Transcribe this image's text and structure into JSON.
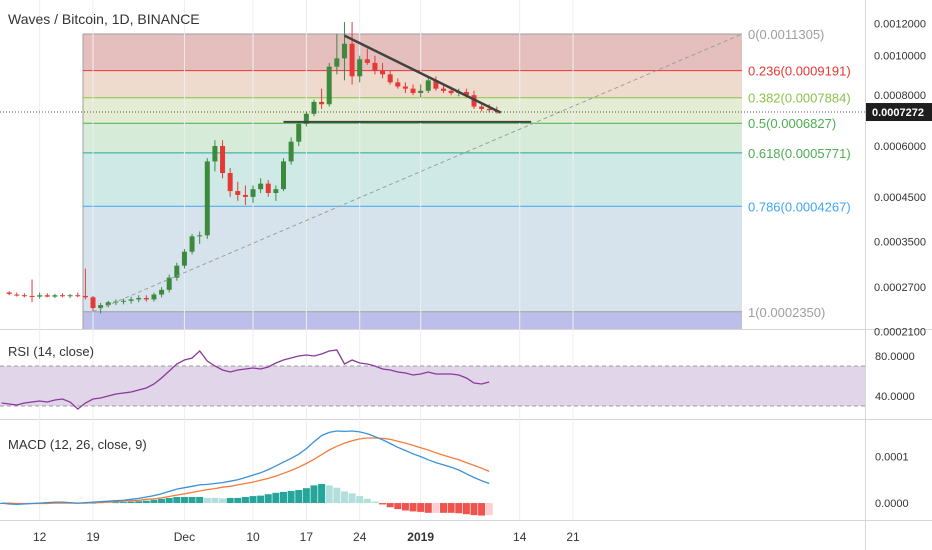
{
  "header": {
    "title": "Waves / Bitcoin, 1D, BINANCE"
  },
  "price_axis": {
    "ticks": [
      "0.0012000",
      "0.0010000",
      "0.0008000",
      "0.0006000",
      "0.0004500",
      "0.0003500",
      "0.0002700",
      "0.0002100"
    ],
    "current_price": "0.0007272"
  },
  "rsi": {
    "title": "RSI (14, close)",
    "ticks": [
      "80.0000",
      "40.0000"
    ],
    "upper_band": 70,
    "lower_band": 30
  },
  "macd": {
    "title": "MACD (12, 26, close, 9)",
    "ticks": [
      "0.0001",
      "0.0000"
    ]
  },
  "time_axis": {
    "ticks": [
      "12",
      "19",
      "Dec",
      "10",
      "17",
      "24",
      "2019",
      "14",
      "21"
    ]
  },
  "colors": {
    "up": "#3d8a3f",
    "down": "#e53935",
    "rsi_line": "#8b3a9a",
    "rsi_fill": "#e1d5ea",
    "macd_line": "#3a91d8",
    "signal_line": "#f57c3a",
    "hist_up": "#26a69a",
    "hist_down": "#ef5350"
  },
  "chart_data": [
    {
      "type": "candlestick",
      "title": "Waves / Bitcoin, 1D, BINANCE",
      "y_scale": "log",
      "ylim": [
        0.0002,
        0.00125
      ],
      "fib_levels": [
        {
          "ratio": "0",
          "price": "0.0011305"
        },
        {
          "ratio": "0.236",
          "price": "0.0009191"
        },
        {
          "ratio": "0.382",
          "price": "0.0007884"
        },
        {
          "ratio": "0.5",
          "price": "0.0006827"
        },
        {
          "ratio": "0.618",
          "price": "0.0005771"
        },
        {
          "ratio": "0.786",
          "price": "0.0004267"
        },
        {
          "ratio": "1",
          "price": "0.0002350"
        }
      ],
      "candles": [
        [
          0.000262,
          0.000264,
          0.000258,
          0.00026
        ],
        [
          0.000259,
          0.000262,
          0.000256,
          0.000258
        ],
        [
          0.000258,
          0.000261,
          0.000255,
          0.000257
        ],
        [
          0.000257,
          0.000282,
          0.000248,
          0.000256
        ],
        [
          0.000256,
          0.000262,
          0.000253,
          0.000258
        ],
        [
          0.000258,
          0.000261,
          0.000255,
          0.000256
        ],
        [
          0.000256,
          0.00026,
          0.000254,
          0.000258
        ],
        [
          0.000258,
          0.000261,
          0.000255,
          0.000257
        ],
        [
          0.000257,
          0.00026,
          0.000254,
          0.000258
        ],
        [
          0.000258,
          0.000262,
          0.000255,
          0.000257
        ],
        [
          0.000257,
          0.0003,
          0.000252,
          0.000255
        ],
        [
          0.000255,
          0.000257,
          0.000236,
          0.00024
        ],
        [
          0.00024,
          0.000247,
          0.000233,
          0.000244
        ],
        [
          0.000244,
          0.00025,
          0.000241,
          0.000248
        ],
        [
          0.000248,
          0.000252,
          0.000244,
          0.000249
        ],
        [
          0.000249,
          0.000253,
          0.000245,
          0.00025
        ],
        [
          0.00025,
          0.000256,
          0.000246,
          0.000252
        ],
        [
          0.000252,
          0.000258,
          0.000248,
          0.000254
        ],
        [
          0.000254,
          0.000258,
          0.000249,
          0.000252
        ],
        [
          0.000252,
          0.000262,
          0.000249,
          0.000259
        ],
        [
          0.000259,
          0.00027,
          0.000255,
          0.000266
        ],
        [
          0.000266,
          0.00029,
          0.000262,
          0.000285
        ],
        [
          0.000285,
          0.00031,
          0.00028,
          0.000305
        ],
        [
          0.000305,
          0.000335,
          0.0003,
          0.00033
        ],
        [
          0.00033,
          0.000365,
          0.000325,
          0.00036
        ],
        [
          0.00036,
          0.00037,
          0.000345,
          0.000362
        ],
        [
          0.000362,
          0.00056,
          0.000355,
          0.00055
        ],
        [
          0.00055,
          0.00062,
          0.00052,
          0.0006
        ],
        [
          0.0006,
          0.00062,
          0.0005,
          0.000515
        ],
        [
          0.000515,
          0.00053,
          0.00045,
          0.000465
        ],
        [
          0.000465,
          0.00049,
          0.00044,
          0.000455
        ],
        [
          0.000455,
          0.00048,
          0.00043,
          0.00045
        ],
        [
          0.00045,
          0.00048,
          0.000435,
          0.00047
        ],
        [
          0.00047,
          0.0005,
          0.00046,
          0.000485
        ],
        [
          0.000485,
          0.000495,
          0.00045,
          0.00046
        ],
        [
          0.00046,
          0.00048,
          0.00044,
          0.00047
        ],
        [
          0.00047,
          0.00056,
          0.000465,
          0.00055
        ],
        [
          0.00055,
          0.00063,
          0.00054,
          0.000615
        ],
        [
          0.000615,
          0.00069,
          0.0006,
          0.00068
        ],
        [
          0.00068,
          0.00073,
          0.00067,
          0.00072
        ],
        [
          0.00072,
          0.00078,
          0.00071,
          0.00077
        ],
        [
          0.00077,
          0.00083,
          0.00074,
          0.00076
        ],
        [
          0.00076,
          0.00096,
          0.00075,
          0.00094
        ],
        [
          0.00094,
          0.00113,
          0.0009,
          0.000985
        ],
        [
          0.000985,
          0.00121,
          0.00087,
          0.00107
        ],
        [
          0.00107,
          0.00121,
          0.00085,
          0.00089
        ],
        [
          0.00089,
          0.001,
          0.00086,
          0.00098
        ],
        [
          0.00098,
          0.00104,
          0.00095,
          0.00096
        ],
        [
          0.00096,
          0.001,
          0.0009,
          0.00092
        ],
        [
          0.00092,
          0.00096,
          0.00088,
          0.0009
        ],
        [
          0.0009,
          0.00092,
          0.00085,
          0.00086
        ],
        [
          0.00086,
          0.00088,
          0.00083,
          0.00084
        ],
        [
          0.00084,
          0.00086,
          0.00081,
          0.00083
        ],
        [
          0.00083,
          0.00085,
          0.0008,
          0.00081
        ],
        [
          0.00081,
          0.00085,
          0.00079,
          0.00082
        ],
        [
          0.00082,
          0.00089,
          0.00081,
          0.00087
        ],
        [
          0.00087,
          0.00089,
          0.00082,
          0.00083
        ],
        [
          0.00083,
          0.00085,
          0.00081,
          0.00082
        ],
        [
          0.00082,
          0.00084,
          0.0008,
          0.00081
        ],
        [
          0.00081,
          0.00083,
          0.000795,
          0.000815
        ],
        [
          0.000815,
          0.00083,
          0.00079,
          0.0008
        ],
        [
          0.0008,
          0.00082,
          0.00074,
          0.00075
        ],
        [
          0.00075,
          0.00077,
          0.00073,
          0.00074
        ],
        [
          0.00074,
          0.00076,
          0.000725,
          0.000735
        ],
        [
          0.000735,
          0.00075,
          0.00072,
          0.00073
        ]
      ],
      "x_ticks": [
        {
          "label": "12",
          "index": -7
        },
        {
          "label": "19",
          "index": 0
        },
        {
          "label": "Dec",
          "index": 12
        },
        {
          "label": "10",
          "index": 21
        },
        {
          "label": "17",
          "index": 28
        },
        {
          "label": "24",
          "index": 35
        },
        {
          "label": "2019",
          "index": 43
        },
        {
          "label": "14",
          "index": 56
        },
        {
          "label": "21",
          "index": 63
        }
      ]
    },
    {
      "type": "line",
      "title": "RSI (14, close)",
      "ylim": [
        20,
        100
      ],
      "series": [
        {
          "values": [
            33,
            32,
            31,
            33,
            34,
            35,
            34,
            36,
            37,
            34,
            27,
            33,
            37,
            38,
            40,
            42,
            43,
            44,
            46,
            48,
            52,
            58,
            65,
            72,
            76,
            78,
            85,
            75,
            70,
            66,
            64,
            66,
            67,
            68,
            67,
            69,
            73,
            76,
            78,
            80,
            81,
            80,
            82,
            85,
            86,
            72,
            76,
            73,
            72,
            70,
            67,
            66,
            64,
            63,
            61,
            62,
            64,
            62,
            62,
            62,
            61,
            58,
            53,
            52,
            54
          ]
        }
      ]
    },
    {
      "type": "line",
      "title": "MACD (12, 26, close, 9)",
      "ylim": [
        -3e-05,
        0.00017
      ],
      "series": [
        {
          "values": [
            0,
            -2e-06,
            -3e-06,
            -2e-06,
            -1e-06,
            0,
            1e-06,
            2e-06,
            2e-06,
            1e-06,
            0,
            1e-06,
            2e-06,
            3e-06,
            4e-06,
            5e-06,
            6e-06,
            8e-06,
            1e-05,
            1.3e-05,
            1.6e-05,
            2e-05,
            2.5e-05,
            3e-05,
            3.3e-05,
            3.6e-05,
            3.9e-05,
            4e-05,
            4.2e-05,
            4.4e-05,
            4.7e-05,
            5e-05,
            5.5e-05,
            6e-05,
            6.5e-05,
            7.2e-05,
            8e-05,
            8.8e-05,
            9.6e-05,
            0.000105,
            0.000117,
            0.000132,
            0.000145,
            0.000152,
            0.000155,
            0.000154,
            0.000155,
            0.000153,
            0.000149,
            0.000143,
            0.000136,
            0.000128,
            0.00012,
            0.000113,
            0.000106,
            0.0001,
            9.3e-05,
            8.7e-05,
            8.2e-05,
            7.7e-05,
            7.1e-05,
            6.3e-05,
            5.5e-05,
            4.8e-05,
            4.2e-05
          ]
        },
        {
          "values": [
            0,
            0,
            -1e-06,
            -1e-06,
            -1e-06,
            -1e-06,
            -1e-06,
            0,
            0,
            0,
            0,
            0,
            1e-06,
            1e-06,
            2e-06,
            3e-06,
            4e-06,
            5e-06,
            6e-06,
            8e-06,
            9e-06,
            1.1e-05,
            1.4e-05,
            1.7e-05,
            2e-05,
            2.3e-05,
            2.6e-05,
            2.9e-05,
            3.1e-05,
            3.4e-05,
            3.6e-05,
            3.9e-05,
            4.2e-05,
            4.5e-05,
            4.9e-05,
            5.3e-05,
            5.8e-05,
            6.4e-05,
            7e-05,
            7.7e-05,
            8.5e-05,
            9.4e-05,
            0.000104,
            0.000114,
            0.000122,
            0.000129,
            0.000134,
            0.000138,
            0.00014,
            0.00014,
            0.000139,
            0.000137,
            0.000133,
            0.000129,
            0.000124,
            0.000119,
            0.000114,
            0.000108,
            0.000103,
            9.8e-05,
            9.3e-05,
            8.7e-05,
            8.1e-05,
            7.5e-05,
            6.8e-05
          ]
        }
      ]
    }
  ]
}
